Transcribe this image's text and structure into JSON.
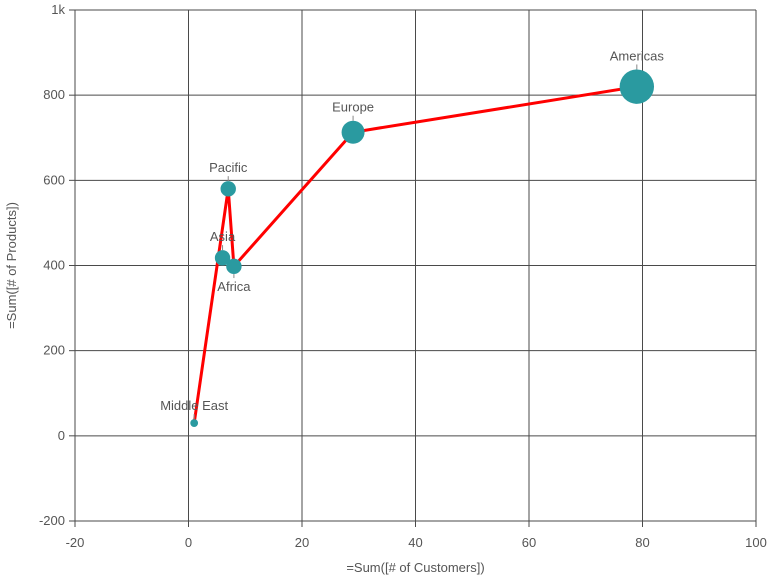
{
  "chart_data": {
    "type": "scatter",
    "xlabel": "=Sum([# of Customers])",
    "ylabel": "=Sum([# of Products])",
    "xlim": [
      -20,
      100
    ],
    "ylim": [
      -200,
      1000
    ],
    "x_ticks": [
      "-20",
      "0",
      "20",
      "40",
      "60",
      "80",
      "100"
    ],
    "y_ticks": [
      "-200",
      "0",
      "200",
      "400",
      "600",
      "800",
      "1k"
    ],
    "grid": true,
    "legend": "none",
    "bubble_color": "#2a9aa0",
    "line_color": "#ff0000",
    "points": [
      {
        "label": "Middle East",
        "x": 1,
        "y": 30,
        "size": 1,
        "label_pos": "above"
      },
      {
        "label": "Pacific",
        "x": 7,
        "y": 580,
        "size": 3,
        "label_pos": "above"
      },
      {
        "label": "Africa",
        "x": 8,
        "y": 398,
        "size": 3,
        "label_pos": "below"
      },
      {
        "label": "Asia",
        "x": 6,
        "y": 418,
        "size": 3,
        "label_pos": "above"
      },
      {
        "label": "Europe",
        "x": 29,
        "y": 713,
        "size": 5,
        "label_pos": "above"
      },
      {
        "label": "Americas",
        "x": 79,
        "y": 820,
        "size": 8,
        "label_pos": "above"
      }
    ],
    "line_order": [
      "Middle East",
      "Pacific",
      "Africa",
      "Europe",
      "Americas"
    ]
  }
}
